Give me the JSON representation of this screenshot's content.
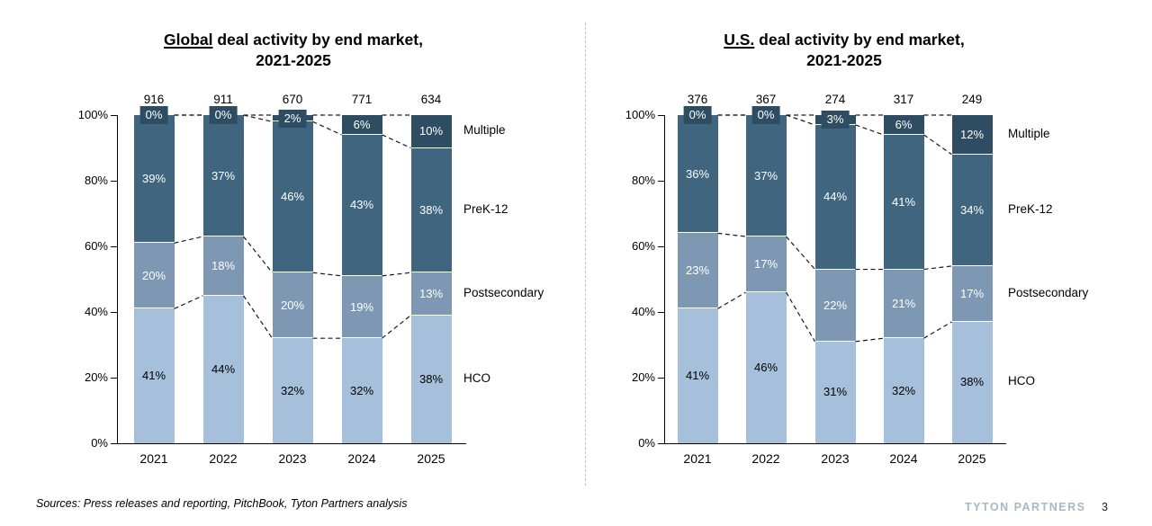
{
  "page": {
    "background": "#ffffff"
  },
  "colors": {
    "hco": "#a6c0dc",
    "postsecondary": "#7e98b4",
    "prek12": "#40667f",
    "multiple": "#2e4d63",
    "brand_text": "#a8b8c4",
    "divider": "#c3c3c3",
    "dash_line": "#1a1a1a"
  },
  "chart_data": [
    {
      "type": "bar",
      "stacking": "percent",
      "title": {
        "underlined": "Global",
        "rest": " deal activity by end market,",
        "line2": "2021-2025"
      },
      "categories": [
        "2021",
        "2022",
        "2023",
        "2024",
        "2025"
      ],
      "totals": [
        "916",
        "911",
        "670",
        "771",
        "634"
      ],
      "series": [
        {
          "name": "HCO",
          "values": [
            41,
            44,
            32,
            32,
            38
          ],
          "color": "#a6c0dc",
          "label_color": "#000000"
        },
        {
          "name": "Postsecondary",
          "values": [
            20,
            18,
            20,
            19,
            13
          ],
          "color": "#7e98b4",
          "label_color": "#ffffff"
        },
        {
          "name": "PreK-12",
          "values": [
            39,
            37,
            46,
            43,
            38
          ],
          "color": "#40667f",
          "label_color": "#ffffff"
        },
        {
          "name": "Multiple",
          "values": [
            0,
            0,
            2,
            6,
            10
          ],
          "color": "#2e4d63",
          "label_color": "#ffffff"
        }
      ],
      "legend_labels": [
        "Multiple",
        "PreK-12",
        "Postsecondary",
        "HCO"
      ],
      "legend_position": "right",
      "y_ticks": [
        "0%",
        "20%",
        "40%",
        "60%",
        "80%",
        "100%"
      ],
      "ylim": [
        0,
        100
      ],
      "grid": false
    },
    {
      "type": "bar",
      "stacking": "percent",
      "title": {
        "underlined": "U.S.",
        "rest": " deal activity by end market,",
        "line2": "2021-2025"
      },
      "categories": [
        "2021",
        "2022",
        "2023",
        "2024",
        "2025"
      ],
      "totals": [
        "376",
        "367",
        "274",
        "317",
        "249"
      ],
      "series": [
        {
          "name": "HCO",
          "values": [
            41,
            46,
            31,
            32,
            38
          ],
          "color": "#a6c0dc",
          "label_color": "#000000"
        },
        {
          "name": "Postsecondary",
          "values": [
            23,
            17,
            22,
            21,
            17
          ],
          "color": "#7e98b4",
          "label_color": "#ffffff"
        },
        {
          "name": "PreK-12",
          "values": [
            36,
            37,
            44,
            41,
            34
          ],
          "color": "#40667f",
          "label_color": "#ffffff"
        },
        {
          "name": "Multiple",
          "values": [
            0,
            0,
            3,
            6,
            12
          ],
          "color": "#2e4d63",
          "label_color": "#ffffff"
        }
      ],
      "legend_labels": [
        "Multiple",
        "PreK-12",
        "Postsecondary",
        "HCO"
      ],
      "legend_position": "right",
      "y_ticks": [
        "0%",
        "20%",
        "40%",
        "60%",
        "80%",
        "100%"
      ],
      "ylim": [
        0,
        100
      ],
      "grid": false
    }
  ],
  "footer": {
    "sources": "Sources: Press releases and reporting, PitchBook, Tyton Partners analysis",
    "brand": "TYTON PARTNERS",
    "page_number": "3"
  }
}
